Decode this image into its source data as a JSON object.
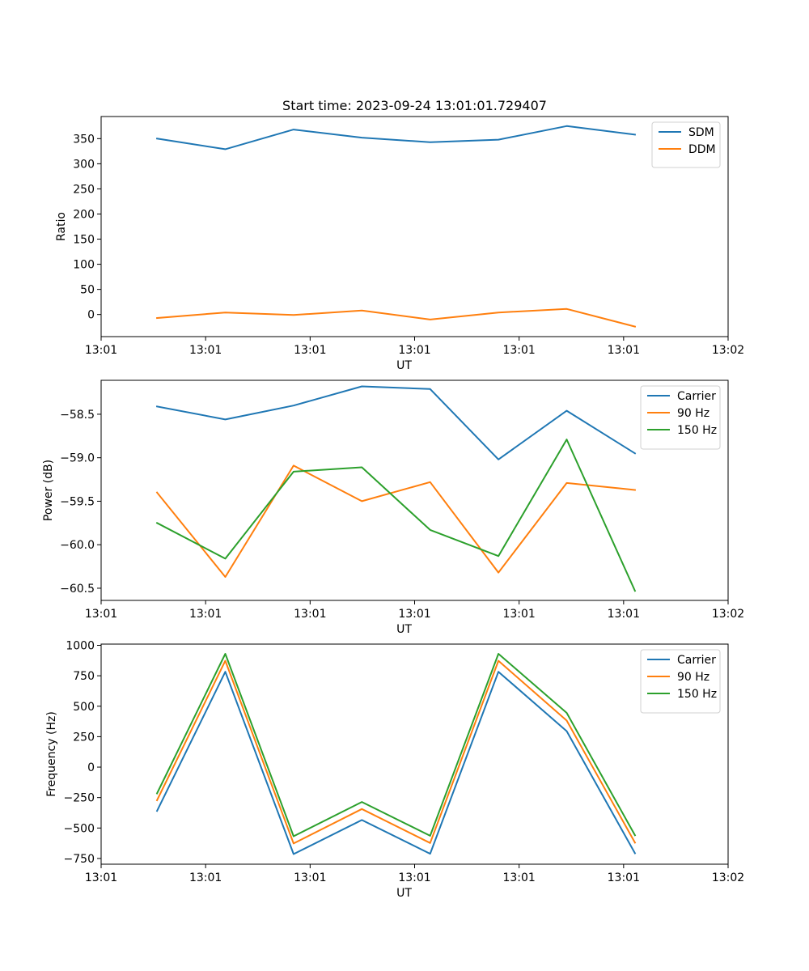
{
  "chart_data": [
    {
      "type": "line",
      "title": "Start time: 2023-09-24 13:01:01.729407",
      "xlabel": "UT",
      "ylabel": "Ratio",
      "x": [
        1,
        2,
        3,
        4,
        5,
        6,
        7,
        8
      ],
      "xlim": [
        0.1818,
        9.3636
      ],
      "xticks": [
        0.1818,
        1.7121,
        3.2424,
        4.7727,
        6.303,
        7.8333,
        9.3636
      ],
      "xtick_labels": [
        "13:01",
        "13:01",
        "13:01",
        "13:01",
        "13:01",
        "13:01",
        "13:02"
      ],
      "ylim": [
        -44,
        394
      ],
      "yticks": [
        0,
        50,
        100,
        150,
        200,
        250,
        300,
        350
      ],
      "ytick_labels": [
        "0",
        "50",
        "100",
        "150",
        "200",
        "250",
        "300",
        "350"
      ],
      "legend_position": "top-right",
      "series": [
        {
          "name": "SDM",
          "color": "#1f77b4",
          "values": [
            350,
            329,
            368,
            352,
            343,
            348,
            375,
            358
          ]
        },
        {
          "name": "DDM",
          "color": "#ff7f0e",
          "values": [
            -7,
            4,
            -1,
            8,
            -10,
            4,
            11,
            -24
          ]
        }
      ]
    },
    {
      "type": "line",
      "title": "",
      "xlabel": "UT",
      "ylabel": "Power (dB)",
      "x": [
        1,
        2,
        3,
        4,
        5,
        6,
        7,
        8
      ],
      "xlim": [
        0.1818,
        9.3636
      ],
      "xticks": [
        0.1818,
        1.7121,
        3.2424,
        4.7727,
        6.303,
        7.8333,
        9.3636
      ],
      "xtick_labels": [
        "13:01",
        "13:01",
        "13:01",
        "13:01",
        "13:01",
        "13:01",
        "13:02"
      ],
      "ylim": [
        -60.64,
        -58.11
      ],
      "yticks": [
        -60.5,
        -60.0,
        -59.5,
        -59.0,
        -58.5
      ],
      "ytick_labels": [
        "−60.5",
        "−60.0",
        "−59.5",
        "−59.0",
        "−58.5"
      ],
      "legend_position": "top-right",
      "series": [
        {
          "name": "Carrier",
          "color": "#1f77b4",
          "values": [
            -58.41,
            -58.56,
            -58.4,
            -58.18,
            -58.21,
            -59.02,
            -58.46,
            -58.95
          ]
        },
        {
          "name": "90 Hz",
          "color": "#ff7f0e",
          "values": [
            -59.4,
            -60.37,
            -59.09,
            -59.5,
            -59.28,
            -60.32,
            -59.29,
            -59.37
          ]
        },
        {
          "name": "150 Hz",
          "color": "#2ca02c",
          "values": [
            -59.75,
            -60.16,
            -59.16,
            -59.11,
            -59.83,
            -60.13,
            -58.79,
            -60.53
          ]
        }
      ]
    },
    {
      "type": "line",
      "title": "",
      "xlabel": "UT",
      "ylabel": "Frequency (Hz)",
      "x": [
        1,
        2,
        3,
        4,
        5,
        6,
        7,
        8
      ],
      "xlim": [
        0.1818,
        9.3636
      ],
      "xticks": [
        0.1818,
        1.7121,
        3.2424,
        4.7727,
        6.303,
        7.8333,
        9.3636
      ],
      "xtick_labels": [
        "13:01",
        "13:01",
        "13:01",
        "13:01",
        "13:01",
        "13:01",
        "13:02"
      ],
      "ylim": [
        -797,
        1010
      ],
      "yticks": [
        -750,
        -500,
        -250,
        0,
        250,
        500,
        750,
        1000
      ],
      "ytick_labels": [
        "−750",
        "−500",
        "−250",
        "0",
        "250",
        "500",
        "750",
        "1000"
      ],
      "legend_position": "top-right",
      "series": [
        {
          "name": "Carrier",
          "color": "#1f77b4",
          "values": [
            -360,
            783,
            -714,
            -434,
            -711,
            783,
            295,
            -707
          ]
        },
        {
          "name": "90 Hz",
          "color": "#ff7f0e",
          "values": [
            -272,
            873,
            -627,
            -344,
            -623,
            873,
            382,
            -620
          ]
        },
        {
          "name": "150 Hz",
          "color": "#2ca02c",
          "values": [
            -216,
            930,
            -568,
            -286,
            -564,
            930,
            445,
            -560
          ]
        }
      ]
    }
  ]
}
